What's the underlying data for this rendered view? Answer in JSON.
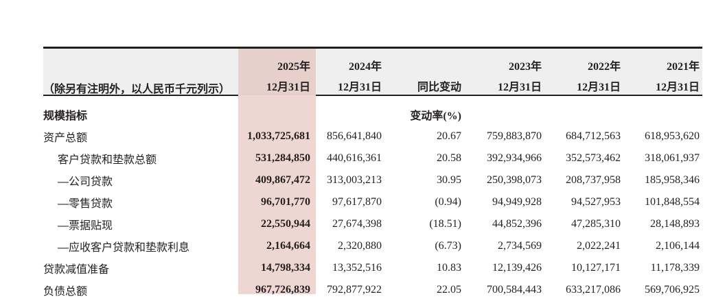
{
  "unit_note": "（除另有注明外，以人民币千元列示）",
  "section_header": "规模指标",
  "change_unit_label": "变动率(%)",
  "columns": [
    {
      "id": "2025",
      "lines": [
        "2025年",
        "12月31日"
      ],
      "highlight": true
    },
    {
      "id": "2024",
      "lines": [
        "2024年",
        "12月31日"
      ],
      "highlight": false
    },
    {
      "id": "yoy",
      "lines": [
        "同比变动"
      ],
      "highlight": false
    },
    {
      "id": "2023",
      "lines": [
        "2023年",
        "12月31日"
      ],
      "highlight": false
    },
    {
      "id": "2022",
      "lines": [
        "2022年",
        "12月31日"
      ],
      "highlight": false
    },
    {
      "id": "2021",
      "lines": [
        "2021年",
        "12月31日"
      ],
      "highlight": false
    }
  ],
  "rows": [
    {
      "label": "资产总额",
      "indent": false,
      "values": [
        "1,033,725,681",
        "856,641,840",
        "20.67",
        "759,883,870",
        "684,712,563",
        "618,953,620"
      ]
    },
    {
      "label": "客户贷款和垫款总额",
      "indent": true,
      "values": [
        "531,284,850",
        "440,616,361",
        "20.58",
        "392,934,966",
        "352,573,462",
        "318,061,937"
      ]
    },
    {
      "label": "—公司贷款",
      "indent": true,
      "values": [
        "409,867,472",
        "313,003,213",
        "30.95",
        "250,398,073",
        "208,737,958",
        "185,958,346"
      ]
    },
    {
      "label": "—零售贷款",
      "indent": true,
      "values": [
        "96,701,770",
        "97,617,870",
        "(0.94)",
        "94,949,928",
        "94,527,953",
        "101,848,554"
      ]
    },
    {
      "label": "—票据贴现",
      "indent": true,
      "values": [
        "22,550,944",
        "27,674,398",
        "(18.51)",
        "44,852,396",
        "47,285,310",
        "28,148,893"
      ]
    },
    {
      "label": "—应收客户贷款和垫款利息",
      "indent": true,
      "values": [
        "2,164,664",
        "2,320,880",
        "(6.73)",
        "2,734,569",
        "2,022,241",
        "2,106,144"
      ]
    },
    {
      "label": "贷款减值准备",
      "indent": false,
      "values": [
        "14,798,334",
        "13,352,516",
        "10.83",
        "12,139,426",
        "10,127,171",
        "11,178,339"
      ]
    },
    {
      "label": "负债总额",
      "indent": false,
      "values": [
        "967,726,839",
        "792,877,922",
        "22.05",
        "700,584,443",
        "633,217,086",
        "569,706,925"
      ]
    }
  ],
  "colors": {
    "highlight_header": "#e7cfcb",
    "highlight_body": "#eed7d3",
    "header_band": "#efeff0",
    "rule": "#1f1f1f",
    "text": "#231f20"
  }
}
